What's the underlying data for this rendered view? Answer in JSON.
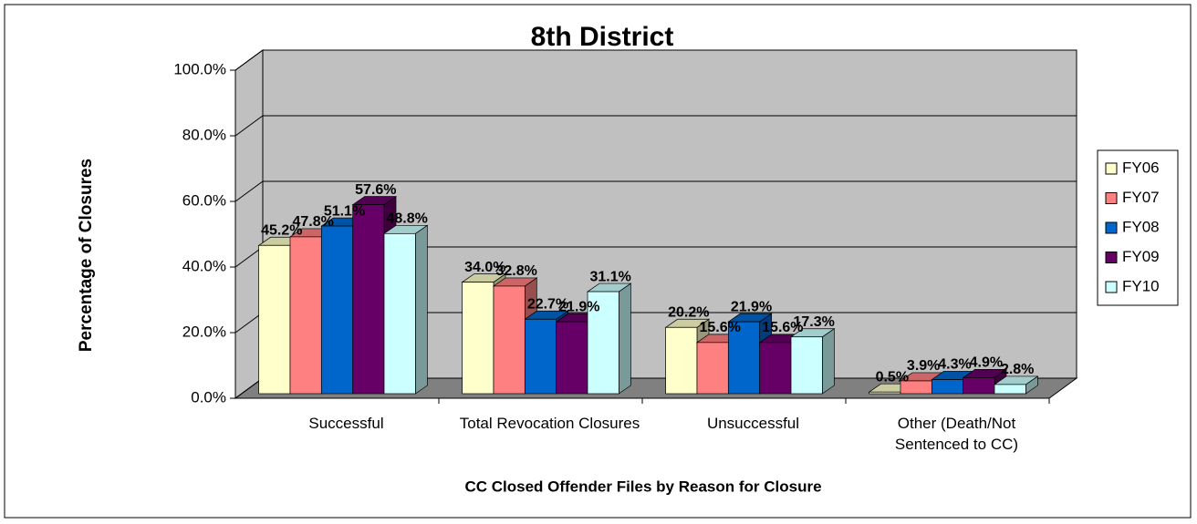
{
  "chart_data": {
    "type": "bar3d",
    "title": "8th District",
    "x_label": "CC Closed Offender Files by Reason for Closure",
    "y_label": "Percentage of Closures",
    "categories": [
      "Successful",
      "Total Revocation Closures",
      "Unsuccessful",
      "Other (Death/Not Sentenced to CC)"
    ],
    "series": [
      {
        "name": "FY06",
        "color": "#FFFFCC",
        "values": [
          45.2,
          34.0,
          20.2,
          0.5
        ],
        "value_labels": [
          "45.2%",
          "34.0%",
          "20.2%",
          "0.5%"
        ]
      },
      {
        "name": "FY07",
        "color": "#FF8080",
        "values": [
          47.8,
          32.8,
          15.6,
          3.9
        ],
        "value_labels": [
          "47.8%",
          "32.8%",
          "15.6%",
          "3.9%"
        ]
      },
      {
        "name": "FY08",
        "color": "#0066CC",
        "values": [
          51.1,
          22.7,
          21.9,
          4.3
        ],
        "value_labels": [
          "51.1%",
          "22.7%",
          "21.9%",
          "4.3%"
        ]
      },
      {
        "name": "FY09",
        "color": "#660066",
        "values": [
          57.6,
          21.9,
          15.6,
          4.9
        ],
        "value_labels": [
          "57.6%",
          "21.9%",
          "15.6%",
          "4.9%"
        ]
      },
      {
        "name": "FY10",
        "color": "#CCFFFF",
        "values": [
          48.8,
          31.1,
          17.3,
          2.8
        ],
        "value_labels": [
          "48.8%",
          "31.1%",
          "17.3%",
          "2.8%"
        ]
      }
    ],
    "ylim": [
      0,
      100
    ],
    "yticks": [
      {
        "value": 0,
        "label": "0.0%"
      },
      {
        "value": 20,
        "label": "20.0%"
      },
      {
        "value": 40,
        "label": "40.0%"
      },
      {
        "value": 60,
        "label": "60.0%"
      },
      {
        "value": 80,
        "label": "80.0%"
      },
      {
        "value": 100,
        "label": "100.0%"
      }
    ],
    "grid": true,
    "legend": "right"
  }
}
